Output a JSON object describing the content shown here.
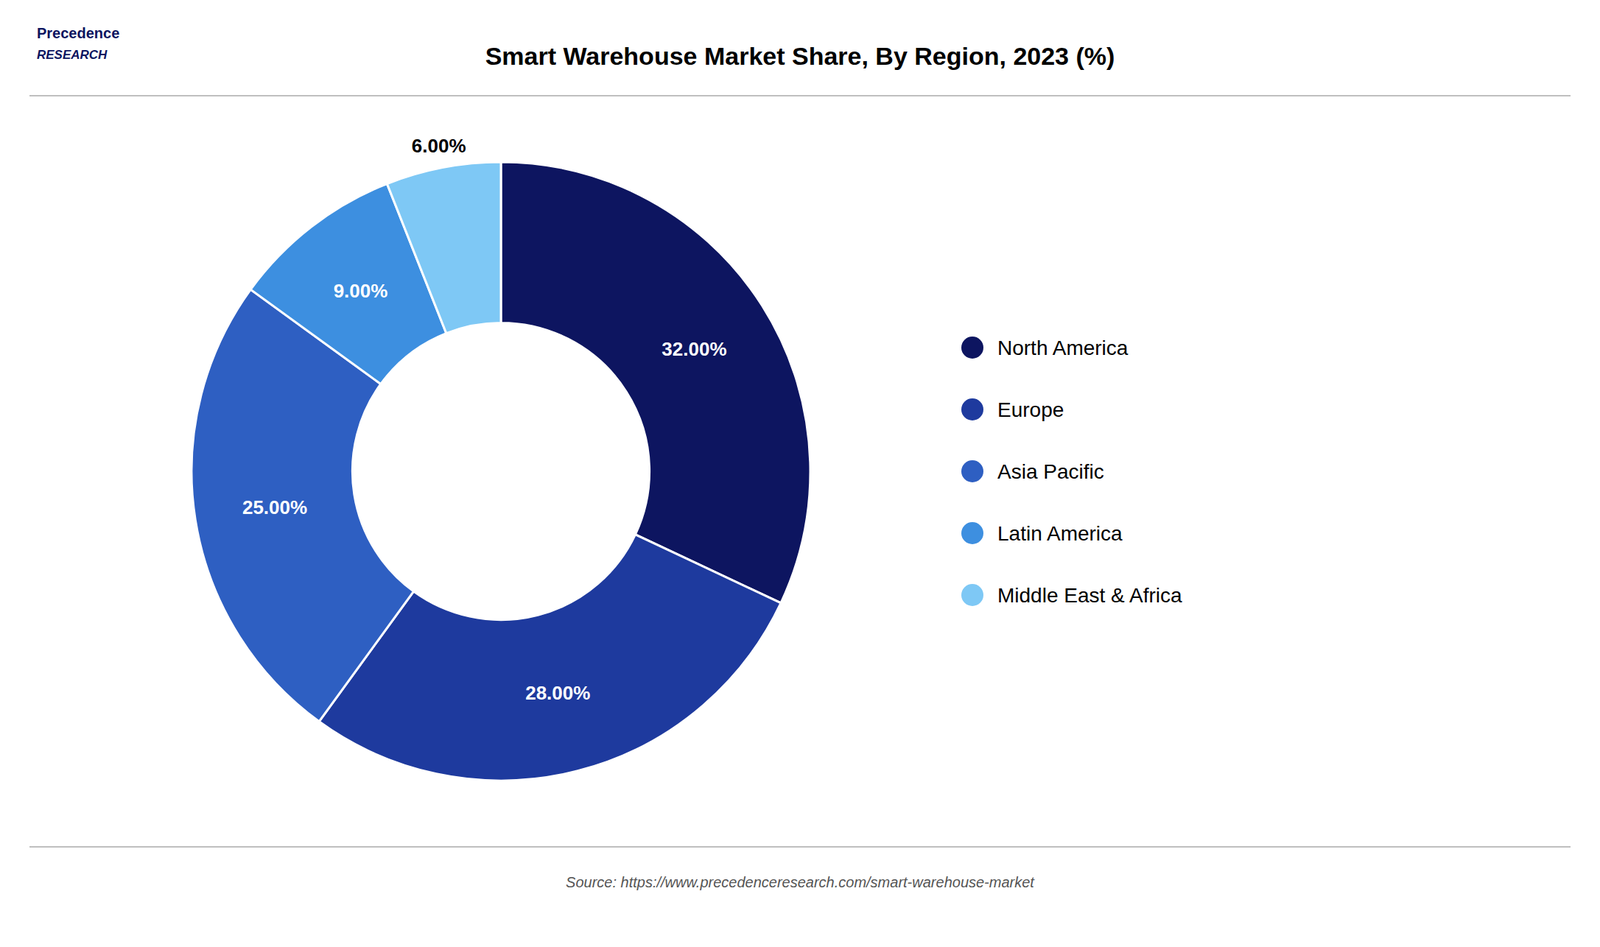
{
  "chart_data": {
    "type": "donut",
    "title": "Smart Warehouse Market Share, By Region, 2023 (%)",
    "categories": [
      "North America",
      "Europe",
      "Asia Pacific",
      "Latin America",
      "Middle East & Africa"
    ],
    "values": [
      32.0,
      28.0,
      25.0,
      9.0,
      6.0
    ],
    "value_labels": [
      "32.00%",
      "28.00%",
      "25.00%",
      "9.00%",
      "6.00%"
    ],
    "colors": [
      "#0d1560",
      "#1e3a9e",
      "#2e5fc2",
      "#3d8fe0",
      "#7ec8f5"
    ],
    "data_labels": true,
    "legend": "right",
    "annotations": [
      "Precedence",
      "RESEARCH",
      "Source: https://www.precedenceresearch.com/smart-warehouse-market"
    ]
  }
}
